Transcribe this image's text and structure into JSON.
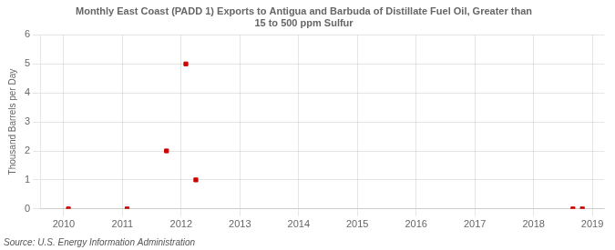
{
  "chart_data": {
    "type": "scatter",
    "title": [
      "Monthly East Coast (PADD 1) Exports to Antigua and Barbuda of Distillate Fuel Oil, Greater than",
      "15 to 500 ppm Sulfur"
    ],
    "ylabel": "Thousand Barrels per Day",
    "annotation": "Source: U.S. Energy Information Administration",
    "x": [
      2010.08,
      2011.08,
      2011.75,
      2012.08,
      2012.25,
      2018.67,
      2018.83
    ],
    "values": [
      0.0,
      0.0,
      2.0,
      5.0,
      1.0,
      0.0,
      0.0
    ],
    "color": "#cc0000",
    "marker": "square",
    "xlim": [
      2009.6,
      2019.2
    ],
    "xticks": [
      2010,
      2011,
      2012,
      2013,
      2014,
      2015,
      2016,
      2017,
      2018,
      2019
    ],
    "ylim": [
      0,
      6
    ],
    "yticks": [
      0,
      1,
      2,
      3,
      4,
      5,
      6
    ],
    "grid": true
  }
}
